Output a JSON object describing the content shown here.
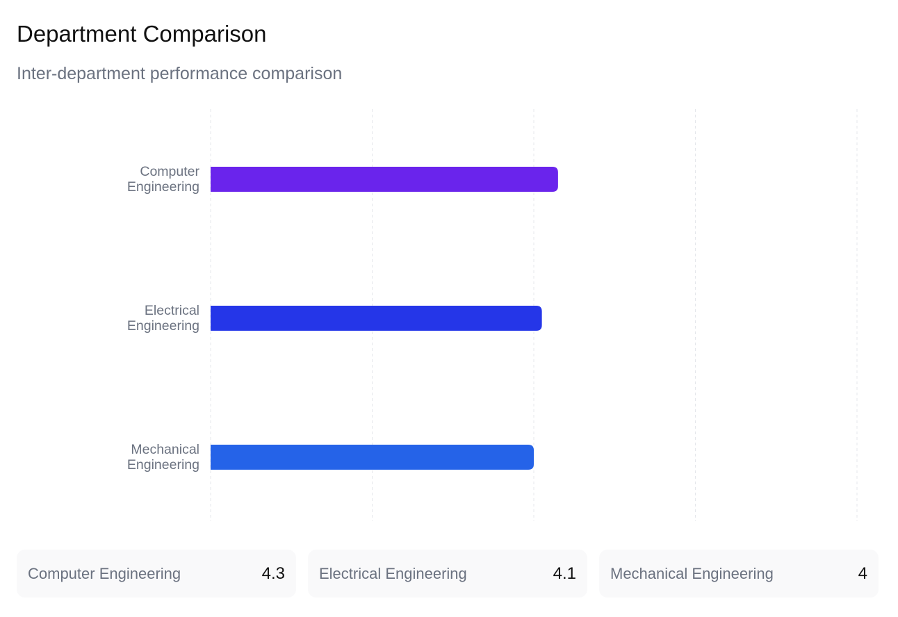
{
  "chart_data": {
    "type": "hbar",
    "title": "Department Comparison",
    "subtitle": "Inter-department performance comparison",
    "categories": [
      "Computer Engineering",
      "Electrical Engineering",
      "Mechanical Engineering"
    ],
    "values": [
      4.3,
      4.1,
      4
    ],
    "colors": [
      "#6a24ec",
      "#2536e8",
      "#2563e8"
    ],
    "xlim": [
      0,
      8
    ],
    "xticks": [
      0,
      2,
      4,
      6,
      8
    ],
    "grid": true
  }
}
